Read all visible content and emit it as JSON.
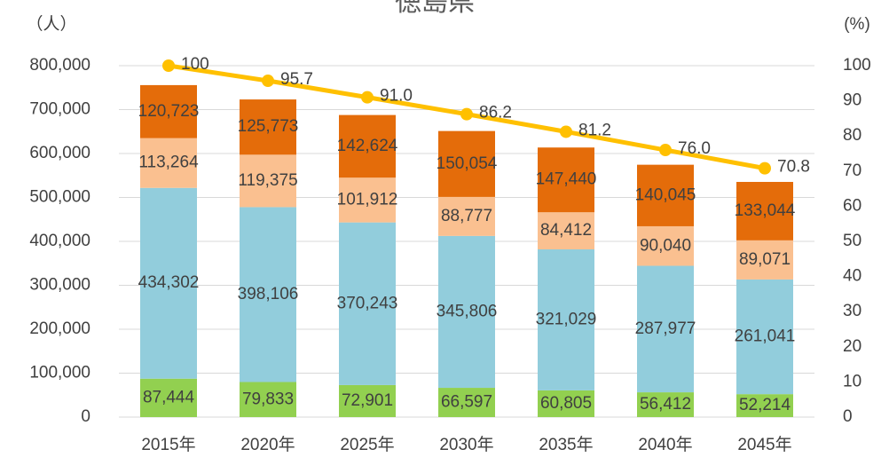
{
  "chart_data": {
    "type": "bar",
    "title": "徳島県",
    "y_label": "（人）",
    "y2_label": "(%)",
    "categories": [
      "2015年",
      "2020年",
      "2025年",
      "2030年",
      "2035年",
      "2040年",
      "2045年"
    ],
    "stacked": true,
    "grid": true,
    "ylim": [
      0,
      800000
    ],
    "yticks": [
      0,
      {
        "value": 100000,
        "label": "100,000"
      },
      {
        "value": 200000,
        "label": "200,000"
      },
      {
        "value": 300000,
        "label": "300,000"
      },
      {
        "value": 400000,
        "label": "400,000"
      },
      {
        "value": 500000,
        "label": "500,000"
      },
      {
        "value": 600000,
        "label": "600,000"
      },
      {
        "value": 700000,
        "label": "700,000"
      },
      {
        "value": 800000,
        "label": "800,000"
      }
    ],
    "y2lim": [
      0,
      100
    ],
    "y2ticks": [
      0,
      10,
      20,
      30,
      40,
      50,
      60,
      70,
      80,
      90,
      100
    ],
    "series": [
      {
        "color": "#92D050",
        "values": [
          87444,
          79833,
          72901,
          66597,
          60805,
          56412,
          52214
        ],
        "value_labels": [
          "87,444",
          "79,833",
          "72,901",
          "66,597",
          "60,805",
          "56,412",
          "52,214"
        ]
      },
      {
        "color": "#92CDDC",
        "values": [
          434302,
          398106,
          370243,
          345806,
          321029,
          287977,
          261041
        ],
        "value_labels": [
          "434,302",
          "398,106",
          "370,243",
          "345,806",
          "321,029",
          "287,977",
          "261,041"
        ]
      },
      {
        "color": "#FAC090",
        "values": [
          113264,
          119375,
          101912,
          88777,
          84412,
          90040,
          89071
        ],
        "value_labels": [
          "113,264",
          "119,375",
          "101,912",
          "88,777",
          "84,412",
          "90,040",
          "89,071"
        ]
      },
      {
        "color": "#E46C0A",
        "values": [
          120723,
          125773,
          142624,
          150054,
          147440,
          140045,
          133044
        ],
        "value_labels": [
          "120,723",
          "125,773",
          "142,624",
          "150,054",
          "147,440",
          "140,045",
          "133,044"
        ]
      },
      {
        "type": "line",
        "axis": "y2",
        "color": "#FFC000",
        "values": [
          100,
          95.7,
          91,
          86.2,
          81.2,
          76,
          70.8
        ],
        "value_labels": [
          "100",
          "95.7",
          "91.0",
          "86.2",
          "81.2",
          "76.0",
          "70.8"
        ]
      }
    ]
  }
}
